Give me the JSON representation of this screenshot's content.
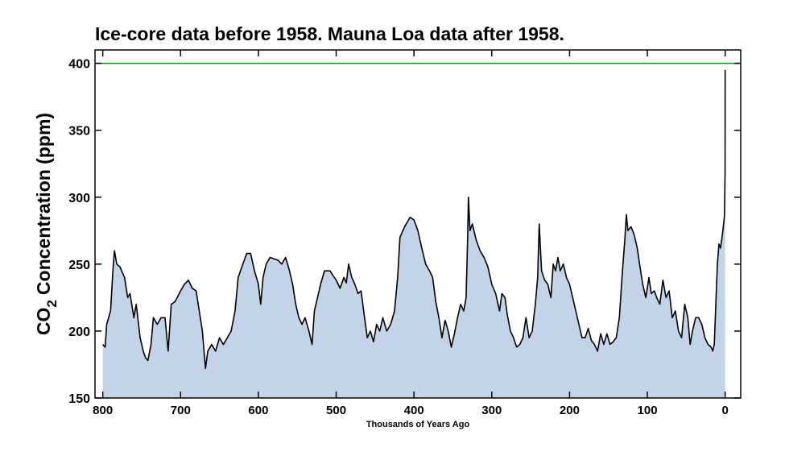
{
  "chart_data": {
    "type": "area",
    "title": "Ice-core data before 1958. Mauna Loa data after 1958.",
    "x_label": "Thousands of Years Ago",
    "y_label": {
      "prefix": "CO",
      "subscript": "2",
      "suffix": "Concentration (ppm)"
    },
    "xlim": [
      810,
      -20
    ],
    "ylim": [
      150,
      410
    ],
    "xticks": [
      800,
      700,
      600,
      500,
      400,
      300,
      200,
      100,
      0
    ],
    "yticks": [
      150,
      200,
      250,
      300,
      350,
      400
    ],
    "reference_line": {
      "value": 400,
      "color": "#1a8a1a"
    },
    "line_color": "#000000",
    "fill_color": "#c3d4e8",
    "x": [
      800,
      797,
      795,
      790,
      787,
      785,
      782,
      778,
      772,
      768,
      765,
      760,
      757,
      752,
      748,
      745,
      742,
      738,
      735,
      730,
      725,
      720,
      716,
      712,
      707,
      700,
      695,
      690,
      685,
      680,
      676,
      672,
      668,
      665,
      660,
      655,
      650,
      645,
      640,
      635,
      630,
      626,
      620,
      615,
      610,
      605,
      600,
      597,
      594,
      590,
      585,
      575,
      570,
      565,
      560,
      556,
      552,
      548,
      544,
      540,
      535,
      531,
      528,
      524,
      520,
      515,
      508,
      500,
      495,
      490,
      487,
      484,
      480,
      476,
      472,
      468,
      464,
      460,
      456,
      452,
      448,
      444,
      440,
      435,
      430,
      425,
      421,
      418,
      412,
      405,
      400,
      395,
      390,
      385,
      380,
      376,
      372,
      368,
      364,
      360,
      356,
      352,
      348,
      344,
      340,
      336,
      333,
      331,
      330,
      328,
      325,
      320,
      315,
      310,
      305,
      300,
      295,
      290,
      287,
      283,
      280,
      276,
      272,
      268,
      264,
      260,
      256,
      252,
      248,
      244,
      241,
      239,
      236,
      232,
      228,
      224,
      221,
      218,
      215,
      212,
      208,
      204,
      200,
      196,
      192,
      188,
      184,
      180,
      176,
      172,
      168,
      164,
      160,
      156,
      152,
      148,
      144,
      140,
      136,
      132,
      129,
      127,
      125,
      121,
      117,
      113,
      110,
      106,
      102,
      98,
      95,
      91,
      88,
      84,
      80,
      76,
      72,
      68,
      64,
      60,
      56,
      52,
      48,
      45,
      42,
      38,
      34,
      30,
      26,
      22,
      18,
      16,
      14,
      12,
      10,
      8,
      6,
      4,
      2,
      1,
      0.5,
      0.1,
      0
    ],
    "values": [
      190,
      188,
      205,
      215,
      245,
      260,
      250,
      248,
      240,
      225,
      228,
      210,
      220,
      195,
      185,
      180,
      178,
      190,
      210,
      205,
      210,
      210,
      185,
      220,
      222,
      230,
      235,
      238,
      232,
      230,
      215,
      200,
      172,
      185,
      190,
      185,
      195,
      190,
      195,
      200,
      215,
      240,
      250,
      258,
      258,
      245,
      235,
      220,
      240,
      250,
      255,
      253,
      250,
      255,
      245,
      235,
      220,
      210,
      205,
      210,
      200,
      190,
      215,
      225,
      235,
      245,
      245,
      238,
      232,
      240,
      236,
      250,
      240,
      235,
      228,
      230,
      212,
      195,
      200,
      192,
      205,
      200,
      210,
      200,
      205,
      215,
      240,
      270,
      278,
      285,
      283,
      275,
      262,
      250,
      245,
      240,
      222,
      210,
      195,
      208,
      200,
      188,
      198,
      210,
      220,
      215,
      225,
      270,
      300,
      275,
      280,
      268,
      260,
      255,
      248,
      235,
      228,
      215,
      228,
      225,
      212,
      200,
      195,
      188,
      190,
      195,
      210,
      195,
      200,
      220,
      240,
      280,
      245,
      238,
      235,
      225,
      250,
      245,
      255,
      245,
      250,
      240,
      235,
      225,
      215,
      205,
      195,
      195,
      202,
      193,
      190,
      185,
      198,
      190,
      198,
      190,
      192,
      195,
      210,
      245,
      268,
      287,
      275,
      278,
      272,
      262,
      250,
      235,
      225,
      240,
      228,
      230,
      225,
      220,
      238,
      225,
      230,
      210,
      215,
      200,
      195,
      220,
      210,
      190,
      200,
      210,
      210,
      205,
      195,
      190,
      188,
      185,
      190,
      220,
      250,
      265,
      262,
      270,
      280,
      285,
      300,
      320,
      395
    ]
  }
}
